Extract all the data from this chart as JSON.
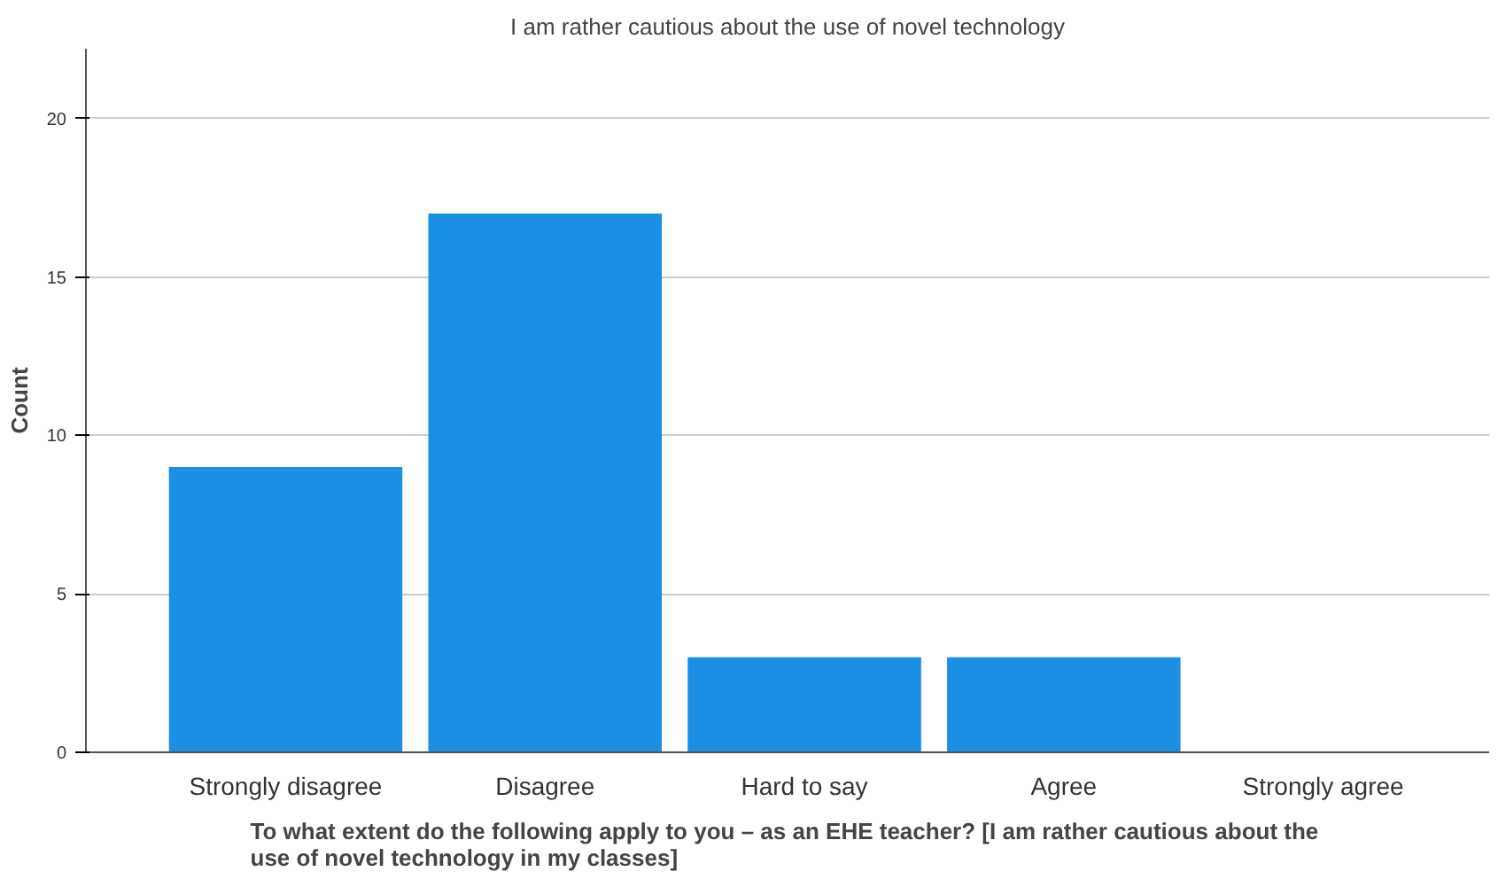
{
  "chart_data": {
    "type": "bar",
    "title": "I am rather cautious about the use of novel technology",
    "xlabel": "To what extent do the following apply to you – as an EHE teacher?  [I am rather cautious about the use of novel technology in my classes]",
    "ylabel": "Count",
    "categories": [
      "Strongly disagree",
      "Disagree",
      "Hard to say",
      "Agree",
      "Strongly agree"
    ],
    "values": [
      9,
      17,
      3,
      3,
      0
    ],
    "color": "#1a8fe3",
    "ylim": [
      0,
      22.2
    ],
    "yticks": [
      0,
      5,
      10,
      15,
      20
    ],
    "grid": "y"
  }
}
